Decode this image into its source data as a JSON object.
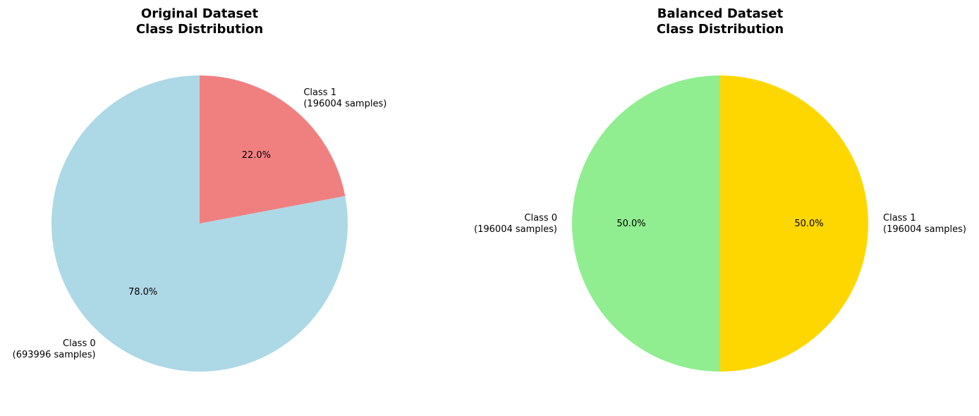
{
  "chart_data": [
    {
      "type": "pie",
      "title": [
        "Original Dataset",
        "Class Distribution"
      ],
      "slices": [
        {
          "label": [
            "Class 0",
            "(693996 samples)"
          ],
          "value": 693996,
          "percent_label": "78.0%",
          "color": "#add8e6"
        },
        {
          "label": [
            "Class 1",
            "(196004 samples)"
          ],
          "value": 196004,
          "percent_label": "22.0%",
          "color": "#f08080"
        }
      ],
      "start_angle": 90,
      "direction": "counterclockwise"
    },
    {
      "type": "pie",
      "title": [
        "Balanced Dataset",
        "Class Distribution"
      ],
      "slices": [
        {
          "label": [
            "Class 0",
            "(196004 samples)"
          ],
          "value": 196004,
          "percent_label": "50.0%",
          "color": "#90ee90"
        },
        {
          "label": [
            "Class 1",
            "(196004 samples)"
          ],
          "value": 196004,
          "percent_label": "50.0%",
          "color": "#ffd700"
        }
      ],
      "start_angle": 90,
      "direction": "counterclockwise"
    }
  ]
}
